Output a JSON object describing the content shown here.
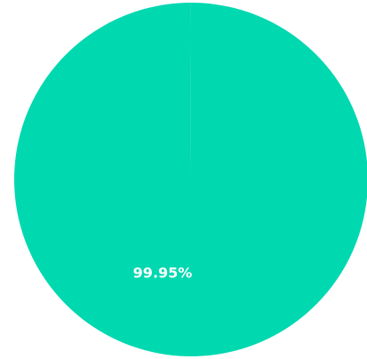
{
  "chart_data": {
    "type": "pie",
    "title": "",
    "slices": [
      {
        "label": "",
        "value": 99.95,
        "color": "#00D8B0",
        "data_label": "99.95%"
      },
      {
        "label": "",
        "value": 0.05,
        "color": "#00D8B0",
        "data_label": ""
      }
    ],
    "legend": "none"
  }
}
